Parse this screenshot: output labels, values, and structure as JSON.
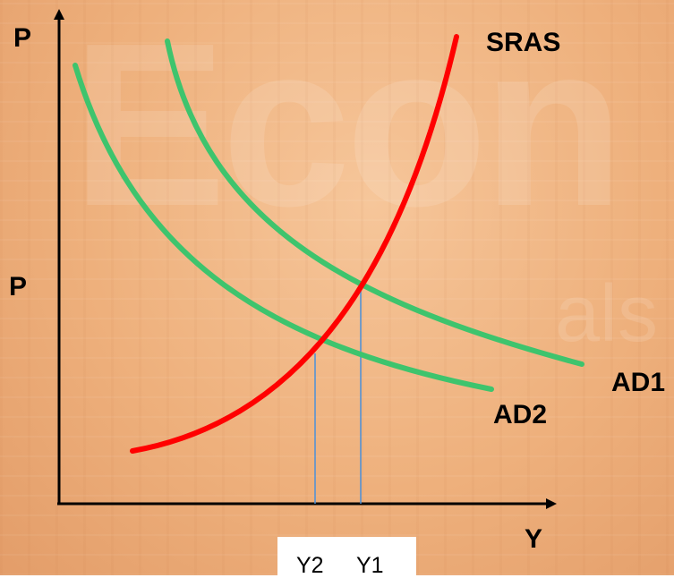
{
  "background": {
    "watermark_word": "Econ",
    "watermark_word_2": "als"
  },
  "axes": {
    "y_label_top": "P",
    "y_label_mid": "P",
    "x_label": "Y"
  },
  "curves": {
    "sras": {
      "label": "SRAS",
      "color": "#ff0000"
    },
    "ad1": {
      "label": "AD1",
      "color": "#3ec46d"
    },
    "ad2": {
      "label": "AD2",
      "color": "#3ec46d"
    }
  },
  "ticks": {
    "y2": "Y2",
    "y1": "Y1"
  },
  "colors": {
    "axis": "#000000",
    "guide": "#4a90d9",
    "tick_box": "#ffffff"
  }
}
